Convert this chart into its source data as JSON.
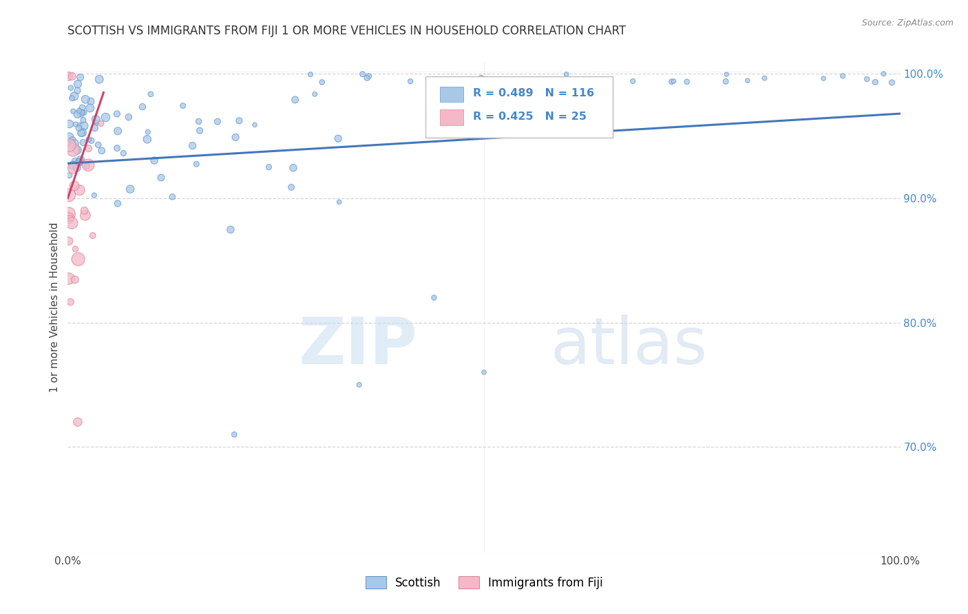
{
  "title": "SCOTTISH VS IMMIGRANTS FROM FIJI 1 OR MORE VEHICLES IN HOUSEHOLD CORRELATION CHART",
  "source": "Source: ZipAtlas.com",
  "ylabel": "1 or more Vehicles in Household",
  "xlim": [
    0.0,
    1.0
  ],
  "ylim": [
    0.615,
    1.01
  ],
  "y_ticks_right": [
    0.7,
    0.8,
    0.9,
    1.0
  ],
  "y_tick_labels_right": [
    "70.0%",
    "80.0%",
    "90.0%",
    "100.0%"
  ],
  "legend_blue_label": "Scottish",
  "legend_pink_label": "Immigrants from Fiji",
  "blue_R": 0.489,
  "blue_N": 116,
  "pink_R": 0.425,
  "pink_N": 25,
  "watermark_zip": "ZIP",
  "watermark_atlas": "atlas",
  "blue_color": "#a8c8e8",
  "blue_edge_color": "#6699cc",
  "pink_color": "#f4b8c8",
  "pink_edge_color": "#dd8899",
  "blue_line_color": "#4477bb",
  "pink_line_color": "#cc4466",
  "background_color": "#ffffff",
  "grid_color": "#cccccc",
  "title_color": "#333333",
  "axis_label_color": "#444444",
  "right_tick_color": "#4488cc",
  "source_color": "#888888"
}
